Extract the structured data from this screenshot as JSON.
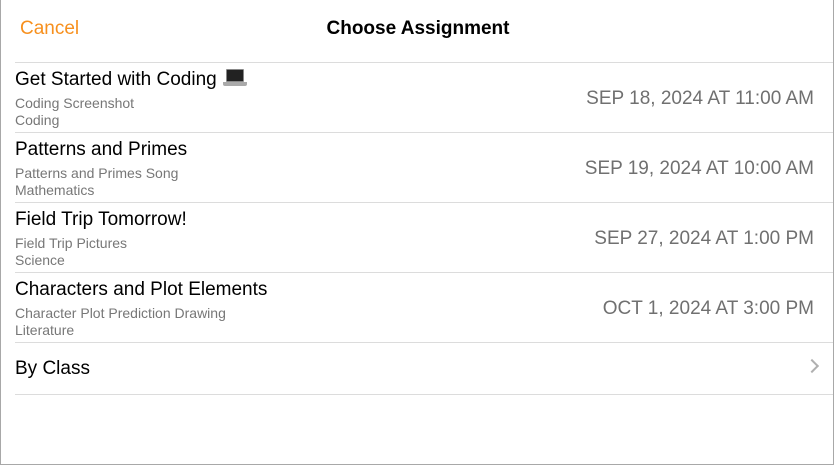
{
  "nav": {
    "cancel_label": "Cancel",
    "title": "Choose Assignment"
  },
  "assignments": [
    {
      "title": "Get Started with Coding",
      "icon": "laptop-icon",
      "subtitle": "Coding Screenshot",
      "subject": "Coding",
      "date": "SEP 18, 2024 AT 11:00 AM"
    },
    {
      "title": "Patterns and Primes",
      "subtitle": "Patterns and Primes Song",
      "subject": "Mathematics",
      "date": "SEP 19, 2024 AT 10:00 AM"
    },
    {
      "title": "Field Trip Tomorrow!",
      "subtitle": "Field Trip Pictures",
      "subject": "Science",
      "date": "SEP 27, 2024 AT 1:00 PM"
    },
    {
      "title": "Characters and Plot Elements",
      "subtitle": "Character Plot Prediction Drawing",
      "subject": "Literature",
      "date": "OCT 1, 2024 AT 3:00 PM"
    }
  ],
  "by_class": {
    "label": "By Class",
    "icon": "chevron-right-icon"
  },
  "colors": {
    "accent": "#f7901e"
  }
}
